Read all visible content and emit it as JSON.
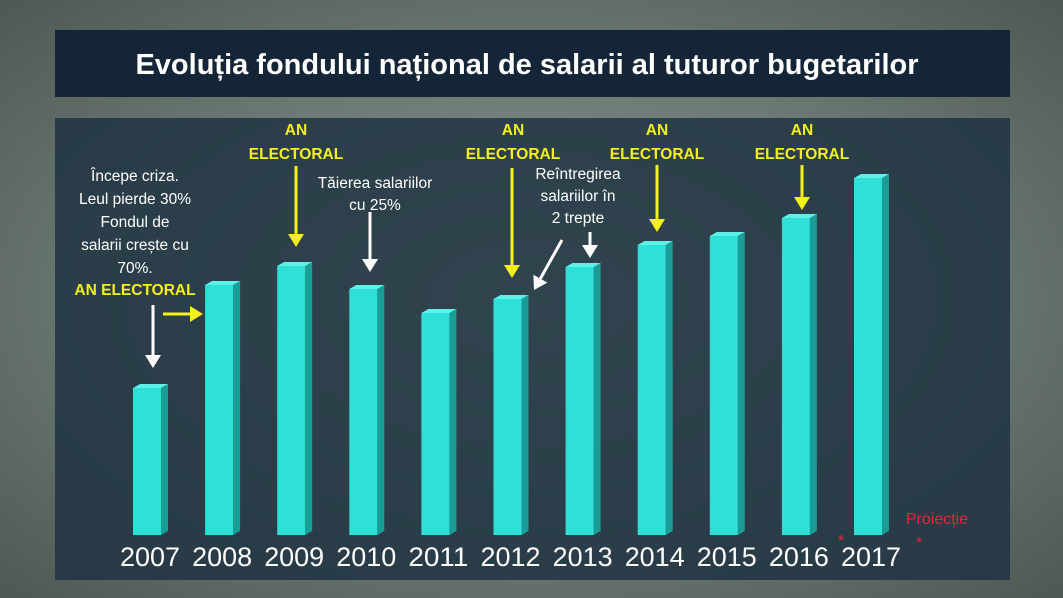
{
  "chart_data": {
    "type": "bar",
    "title": "Evoluția fondului național de salarii al tuturor bugetarilor",
    "categories": [
      "2007",
      "2008",
      "2009",
      "2010",
      "2011",
      "2012",
      "2013",
      "2014",
      "2015",
      "2016",
      "2017"
    ],
    "values": [
      147,
      250,
      269,
      246,
      222,
      236,
      268,
      290,
      299,
      317,
      357
    ],
    "color": "#2ee0d8",
    "ylim": [
      0,
      400
    ],
    "annotations": [
      {
        "lines": [
          "Începe criza.",
          "Leul pierde 30%",
          "Fondul de",
          "salarii crește cu",
          "70%."
        ],
        "color": "#ffffff"
      },
      {
        "lines": [
          "AN ELECTORAL"
        ],
        "color": "#f4f21a"
      },
      {
        "lines": [
          "AN",
          "ELECTORAL"
        ],
        "color": "#f4f21a"
      },
      {
        "lines": [
          "Tăierea salariilor",
          "cu 25%"
        ],
        "color": "#ffffff"
      },
      {
        "lines": [
          "AN",
          "ELECTORAL"
        ],
        "color": "#f4f21a"
      },
      {
        "lines": [
          "Reîntregirea",
          "salariilor în",
          "2 trepte"
        ],
        "color": "#ffffff"
      },
      {
        "lines": [
          "AN",
          "ELECTORAL"
        ],
        "color": "#f4f21a"
      },
      {
        "lines": [
          "AN",
          "ELECTORAL"
        ],
        "color": "#f4f21a"
      },
      {
        "lines": [
          "Proiecție"
        ],
        "color": "#e8253a"
      },
      {
        "lines": [
          "*"
        ],
        "color": "#e8253a"
      },
      {
        "lines": [
          "*"
        ],
        "color": "#e8253a"
      }
    ]
  }
}
